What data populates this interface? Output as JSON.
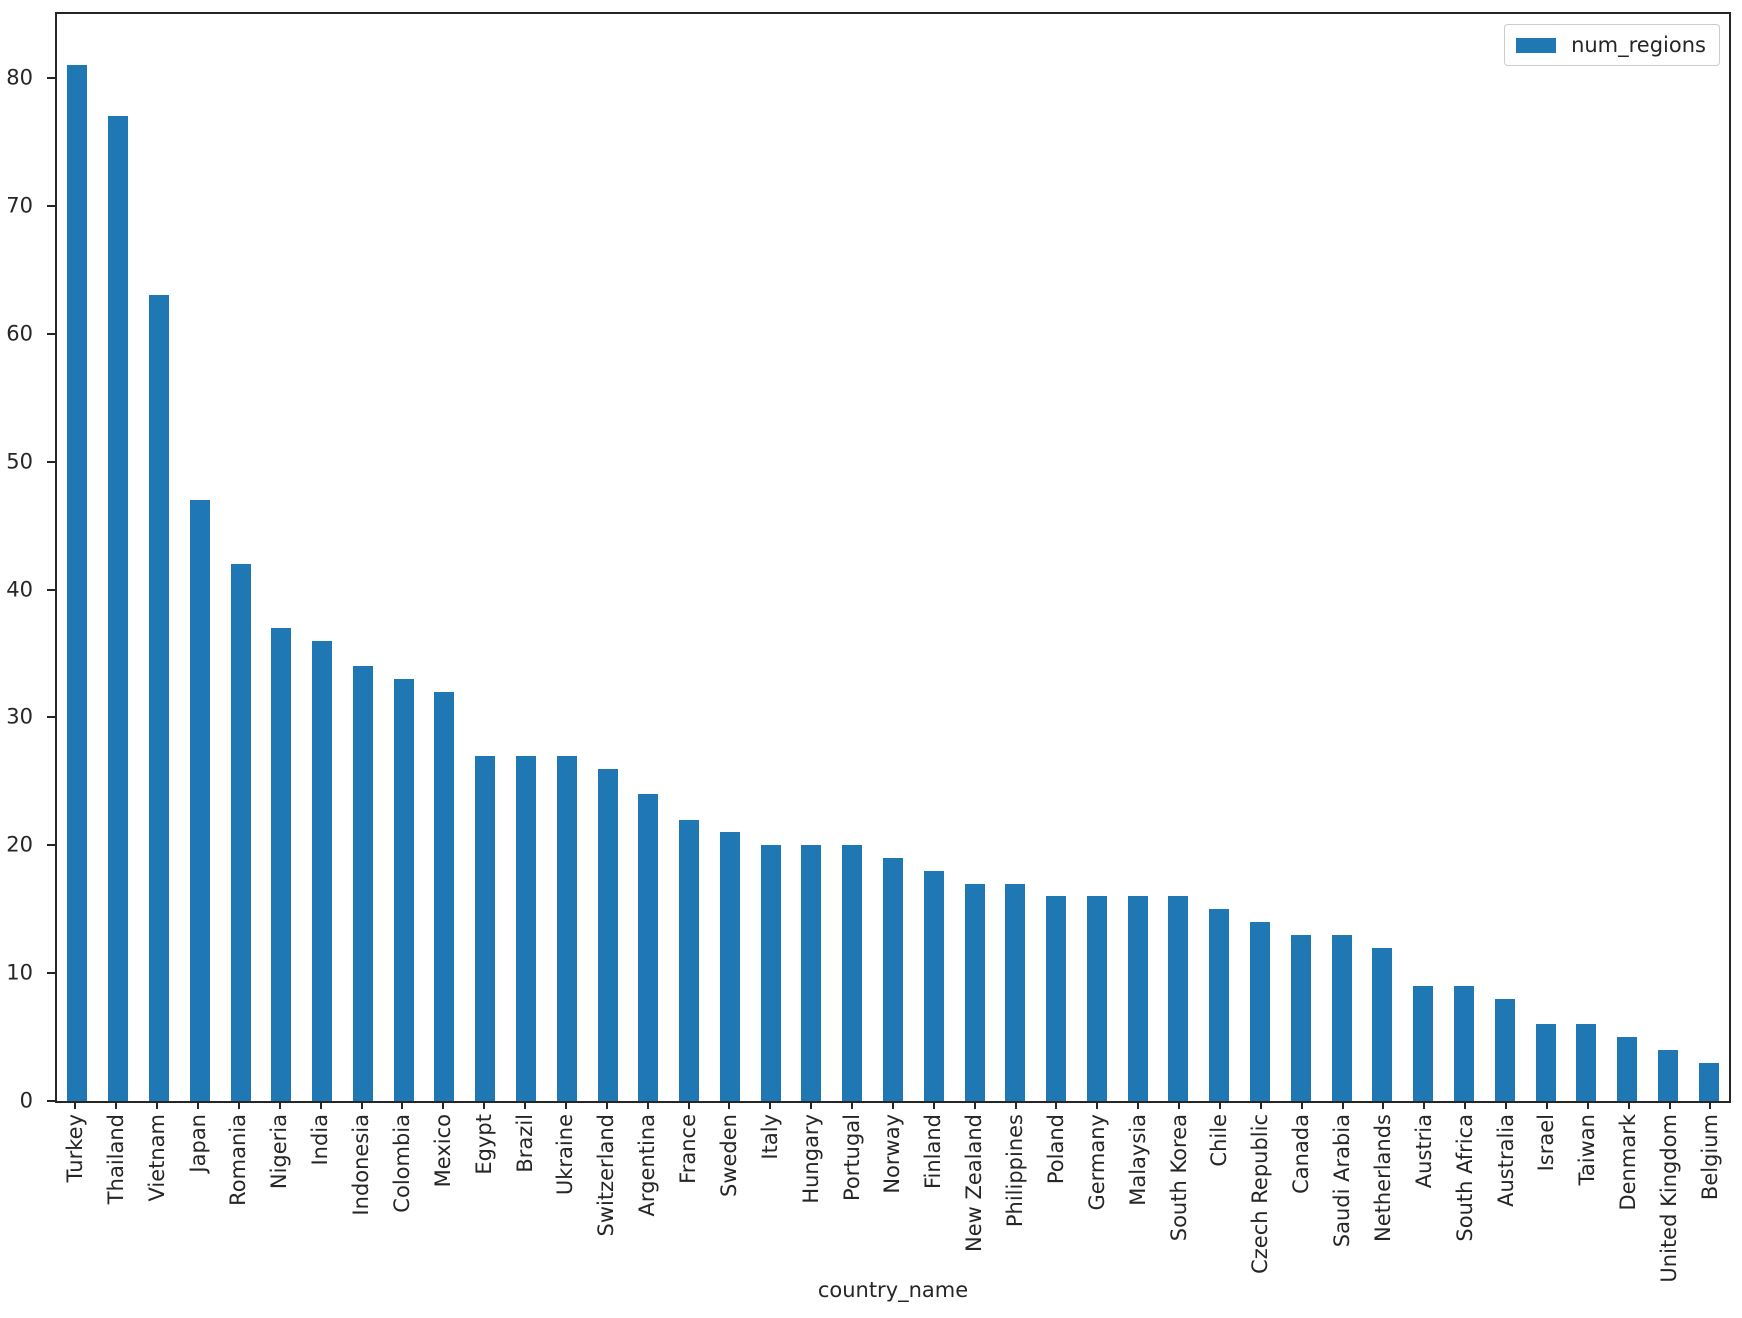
{
  "chart_data": {
    "type": "bar",
    "title": "",
    "xlabel": "country_name",
    "ylabel": "",
    "legend": {
      "label": "num_regions",
      "position": "upper right"
    },
    "bar_color": "#1f77b4",
    "axis_color": "#262626",
    "grid": false,
    "ylim": [
      0,
      85
    ],
    "yticks": [
      0,
      10,
      20,
      30,
      40,
      50,
      60,
      70,
      80
    ],
    "categories": [
      "Turkey",
      "Thailand",
      "Vietnam",
      "Japan",
      "Romania",
      "Nigeria",
      "India",
      "Indonesia",
      "Colombia",
      "Mexico",
      "Egypt",
      "Brazil",
      "Ukraine",
      "Switzerland",
      "Argentina",
      "France",
      "Sweden",
      "Italy",
      "Hungary",
      "Portugal",
      "Norway",
      "Finland",
      "New Zealand",
      "Philippines",
      "Poland",
      "Germany",
      "Malaysia",
      "South Korea",
      "Chile",
      "Czech Republic",
      "Canada",
      "Saudi Arabia",
      "Netherlands",
      "Austria",
      "South Africa",
      "Australia",
      "Israel",
      "Taiwan",
      "Denmark",
      "United Kingdom",
      "Belgium"
    ],
    "values": [
      81,
      77,
      63,
      47,
      42,
      37,
      36,
      34,
      33,
      32,
      27,
      27,
      27,
      26,
      24,
      22,
      21,
      20,
      20,
      20,
      19,
      18,
      17,
      17,
      16,
      16,
      16,
      16,
      15,
      14,
      13,
      13,
      12,
      9,
      9,
      8,
      6,
      6,
      5,
      4,
      3
    ]
  }
}
